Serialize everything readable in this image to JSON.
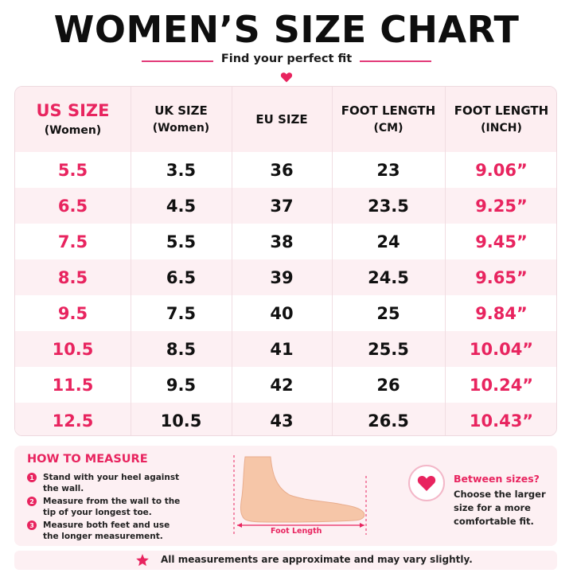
{
  "title": "WOMEN’S SIZE CHART",
  "subtitle": "Find your perfect fit",
  "colors": {
    "accent": "#e8245f",
    "header_bg": "#fdeef1",
    "alt_row_bg": "#fdf0f3"
  },
  "table": {
    "headers": [
      {
        "line1": "US SIZE",
        "line2": "(Women)"
      },
      {
        "line1": "UK SIZE",
        "line2": "(Women)"
      },
      {
        "line1": "EU SIZE",
        "line2": ""
      },
      {
        "line1": "FOOT LENGTH",
        "line2": "(CM)"
      },
      {
        "line1": "FOOT LENGTH",
        "line2": "(INCH)"
      }
    ],
    "rows": [
      [
        "5.5",
        "3.5",
        "36",
        "23",
        "9.06”"
      ],
      [
        "6.5",
        "4.5",
        "37",
        "23.5",
        "9.25”"
      ],
      [
        "7.5",
        "5.5",
        "38",
        "24",
        "9.45”"
      ],
      [
        "8.5",
        "6.5",
        "39",
        "24.5",
        "9.65”"
      ],
      [
        "9.5",
        "7.5",
        "40",
        "25",
        "9.84”"
      ],
      [
        "10.5",
        "8.5",
        "41",
        "25.5",
        "10.04”"
      ],
      [
        "11.5",
        "9.5",
        "42",
        "26",
        "10.24”"
      ],
      [
        "12.5",
        "10.5",
        "43",
        "26.5",
        "10.43”"
      ]
    ]
  },
  "how_to_measure": {
    "title": "HOW TO MEASURE",
    "steps": [
      {
        "num": "1",
        "text": "Stand with your heel against the wall."
      },
      {
        "num": "2",
        "text": "Measure from the wall to the tip of your longest toe."
      },
      {
        "num": "3",
        "text": "Measure both feet and use the longer measurement."
      }
    ],
    "diagram_label": "Foot Length"
  },
  "between_sizes": {
    "title": "Between sizes?",
    "text": "Choose the larger size for a more comfortable fit."
  },
  "note": "All measurements are approximate and may vary slightly."
}
